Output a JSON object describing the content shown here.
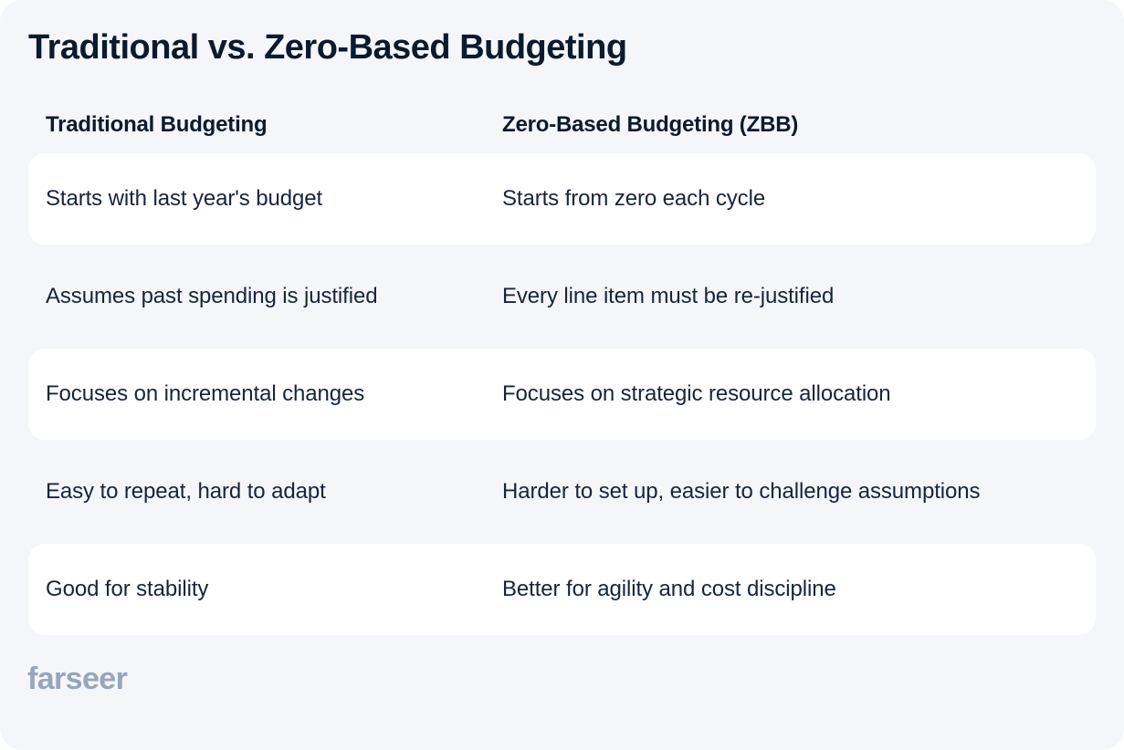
{
  "page": {
    "title": "Traditional vs. Zero-Based Budgeting"
  },
  "table": {
    "columns": [
      {
        "label": "Traditional Budgeting"
      },
      {
        "label": "Zero-Based Budgeting (ZBB)"
      }
    ],
    "rows": [
      [
        "Starts with last year's budget",
        "Starts from zero each cycle"
      ],
      [
        "Assumes past spending is justified",
        "Every line item must be re-justified"
      ],
      [
        "Focuses on incremental changes",
        "Focuses on strategic resource allocation"
      ],
      [
        "Easy to repeat, hard to adapt",
        "Harder to set up, easier to challenge assumptions"
      ],
      [
        "Good for stability",
        "Better for agility and cost discipline"
      ]
    ]
  },
  "footer": {
    "logo_text": "farseer"
  },
  "colors": {
    "canvas_background": "#f4f6f9",
    "card_background": "#ffffff",
    "heading_text": "#0c1a2d",
    "body_text": "#16253c",
    "logo_text": "#97a6bc"
  }
}
